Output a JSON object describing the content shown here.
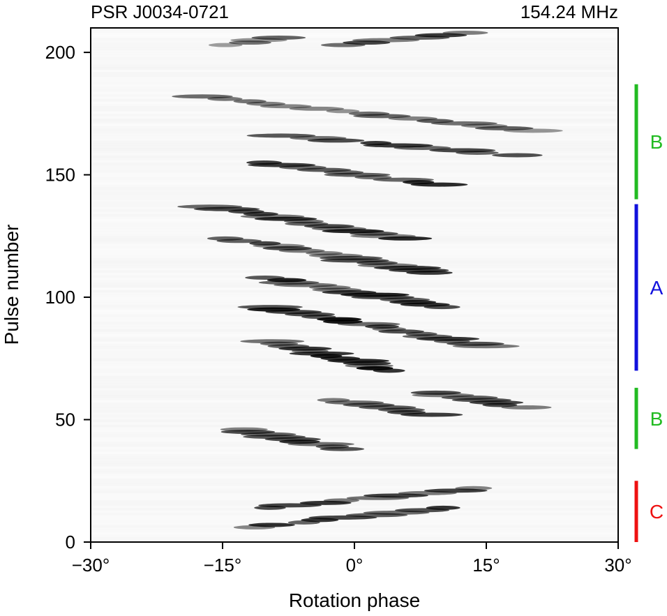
{
  "chart_data": {
    "type": "heatmap",
    "title_left": "PSR J0034-0721",
    "title_right": "154.24 MHz",
    "xlabel": "Rotation phase",
    "ylabel": "Pulse number",
    "xlim": [
      -30,
      30
    ],
    "ylim": [
      0,
      210
    ],
    "colormap": "grayscale (white = low, black = high intensity)",
    "x_ticks": [
      -30,
      -15,
      0,
      15,
      30
    ],
    "x_tick_labels": [
      "−30°",
      "−15°",
      "0°",
      "15°",
      "30°"
    ],
    "y_ticks": [
      0,
      50,
      100,
      150,
      200
    ],
    "y_tick_labels": [
      "0",
      "50",
      "100",
      "150",
      "200"
    ],
    "mode_segments": [
      {
        "mode": "C",
        "pulse_start": 0,
        "pulse_end": 25,
        "color": "#ee1111"
      },
      {
        "mode": "B",
        "pulse_start": 38,
        "pulse_end": 63,
        "color": "#22bb22"
      },
      {
        "mode": "A",
        "pulse_start": 70,
        "pulse_end": 138,
        "color": "#1111dd"
      },
      {
        "mode": "B",
        "pulse_start": 140,
        "pulse_end": 187,
        "color": "#22bb22"
      }
    ],
    "drift_tracks": [
      {
        "pulse_start": 6,
        "pulse_end": 14,
        "phase_start": -12,
        "phase_end": 10,
        "intensity": 0.8
      },
      {
        "pulse_start": 14,
        "pulse_end": 22,
        "phase_start": -10,
        "phase_end": 14,
        "intensity": 0.8
      },
      {
        "pulse_start": 38,
        "pulse_end": 46,
        "phase_start": -1,
        "phase_end": -13,
        "intensity": 0.85
      },
      {
        "pulse_start": 52,
        "pulse_end": 58,
        "phase_start": 8,
        "phase_end": -2,
        "intensity": 0.8
      },
      {
        "pulse_start": 55,
        "pulse_end": 61,
        "phase_start": 19,
        "phase_end": 9,
        "intensity": 0.7
      },
      {
        "pulse_start": 70,
        "pulse_end": 82,
        "phase_start": 4,
        "phase_end": -9,
        "intensity": 0.9
      },
      {
        "pulse_start": 80,
        "pulse_end": 96,
        "phase_start": 15,
        "phase_end": -10,
        "intensity": 0.9
      },
      {
        "pulse_start": 96,
        "pulse_end": 108,
        "phase_start": 10,
        "phase_end": -10,
        "intensity": 0.85
      },
      {
        "pulse_start": 110,
        "pulse_end": 124,
        "phase_start": 9,
        "phase_end": -14,
        "intensity": 0.85
      },
      {
        "pulse_start": 124,
        "pulse_end": 137,
        "phase_start": 5,
        "phase_end": -16,
        "intensity": 0.85
      },
      {
        "pulse_start": 146,
        "pulse_end": 155,
        "phase_start": 9,
        "phase_end": -10,
        "intensity": 0.85
      },
      {
        "pulse_start": 158,
        "pulse_end": 166,
        "phase_start": 18,
        "phase_end": -8,
        "intensity": 0.75
      },
      {
        "pulse_start": 168,
        "pulse_end": 182,
        "phase_start": 20,
        "phase_end": -18,
        "intensity": 0.6
      },
      {
        "pulse_start": 203,
        "pulse_end": 208,
        "phase_start": -1,
        "phase_end": 12,
        "intensity": 0.75
      },
      {
        "pulse_start": 203,
        "pulse_end": 206,
        "phase_start": -14,
        "phase_end": -9,
        "intensity": 0.6
      }
    ]
  }
}
